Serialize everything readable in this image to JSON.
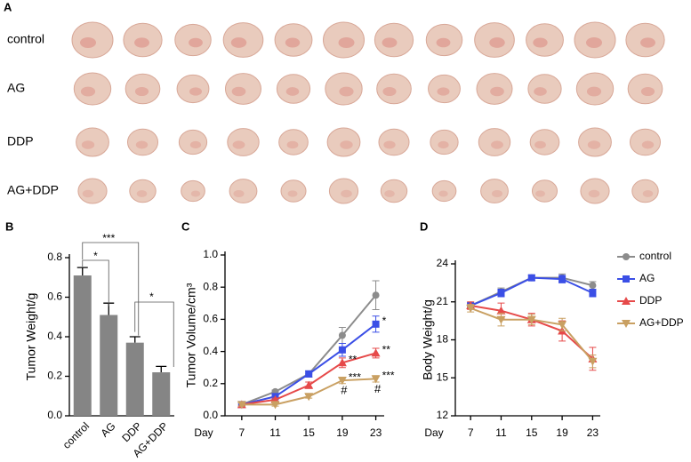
{
  "panel_a": {
    "label": "A",
    "rows": [
      "control",
      "AG",
      "DDP",
      "AG+DDP"
    ]
  },
  "chart_data": [
    {
      "type": "bar",
      "panel": "B",
      "ylabel": "Tumor Weight/g",
      "categories": [
        "control",
        "AG",
        "DDP",
        "AG+DDP"
      ],
      "values": [
        0.71,
        0.51,
        0.37,
        0.22
      ],
      "errors": [
        0.04,
        0.06,
        0.03,
        0.03
      ],
      "color": "#858585",
      "ylim": [
        0,
        0.8
      ],
      "yticks": [
        {
          "value": 0,
          "label": "0.0"
        },
        0.2,
        0.4,
        0.6,
        0.8
      ],
      "annotations": [
        "***",
        "*",
        "*"
      ]
    },
    {
      "type": "line",
      "panel": "C",
      "ylabel": "Tumor Volume/cm³",
      "xlabel": "Day",
      "x": [
        7,
        11,
        15,
        19,
        23
      ],
      "xlim": [
        5,
        24
      ],
      "xticks": [
        7,
        11,
        15,
        19,
        23
      ],
      "ylim": [
        0,
        1
      ],
      "yticks": [
        {
          "value": 0,
          "label": "0.0"
        },
        0.2,
        0.4,
        0.6,
        0.8,
        {
          "value": 1,
          "label": "1.0"
        }
      ],
      "series": [
        {
          "color": "#8c8c8c",
          "marker": "circle",
          "values": [
            0.07,
            0.15,
            0.26,
            0.5,
            0.75
          ],
          "errors": [
            0.01,
            0.01,
            0.02,
            0.05,
            0.09
          ]
        },
        {
          "color": "#3b4fe6",
          "marker": "square",
          "values": [
            0.07,
            0.12,
            0.26,
            0.41,
            0.57
          ],
          "errors": [
            0.01,
            0.01,
            0.02,
            0.04,
            0.05
          ],
          "sig": [
            null,
            null,
            null,
            null,
            "*"
          ]
        },
        {
          "color": "#e64a4a",
          "marker": "triangle",
          "values": [
            0.07,
            0.1,
            0.19,
            0.33,
            0.39
          ],
          "errors": [
            0.01,
            0.01,
            0.02,
            0.03,
            0.03
          ],
          "sig": [
            null,
            null,
            null,
            "**",
            "**"
          ]
        },
        {
          "color": "#c9a062",
          "marker": "triangle-down",
          "values": [
            0.07,
            0.07,
            0.12,
            0.22,
            0.23
          ],
          "errors": [
            0.01,
            0.01,
            0.01,
            0.02,
            0.02
          ],
          "sig": [
            null,
            null,
            null,
            "***",
            "***"
          ],
          "hash": [
            null,
            null,
            null,
            "#",
            "#"
          ]
        }
      ]
    },
    {
      "type": "line",
      "panel": "D",
      "ylabel": "Body Weight/g",
      "xlabel": "Day",
      "legend": true,
      "x": [
        7,
        11,
        15,
        19,
        23
      ],
      "xlim": [
        5,
        24
      ],
      "xticks": [
        7,
        11,
        15,
        19,
        23
      ],
      "ylim": [
        12,
        24
      ],
      "yticks": [
        12,
        15,
        18,
        21,
        24
      ],
      "series": [
        {
          "name": "control",
          "color": "#8c8c8c",
          "marker": "circle",
          "values": [
            20.7,
            21.8,
            22.9,
            22.9,
            22.3
          ],
          "errors": [
            0.2,
            0.3,
            0.2,
            0.3,
            0.3
          ]
        },
        {
          "name": "AG",
          "color": "#3b4fe6",
          "marker": "square",
          "values": [
            20.7,
            21.7,
            22.9,
            22.8,
            21.7
          ],
          "errors": [
            0.2,
            0.3,
            0.2,
            0.3,
            0.3
          ]
        },
        {
          "name": "DDP",
          "color": "#e64a4a",
          "marker": "triangle",
          "values": [
            20.7,
            20.3,
            19.6,
            18.7,
            16.5
          ],
          "errors": [
            0.3,
            0.6,
            0.5,
            0.8,
            0.9
          ]
        },
        {
          "name": "AG+DDP",
          "color": "#c9a062",
          "marker": "triangle-down",
          "values": [
            20.5,
            19.6,
            19.6,
            19.2,
            16.3
          ],
          "errors": [
            0.3,
            0.5,
            0.4,
            0.5,
            0.5
          ]
        }
      ]
    }
  ]
}
